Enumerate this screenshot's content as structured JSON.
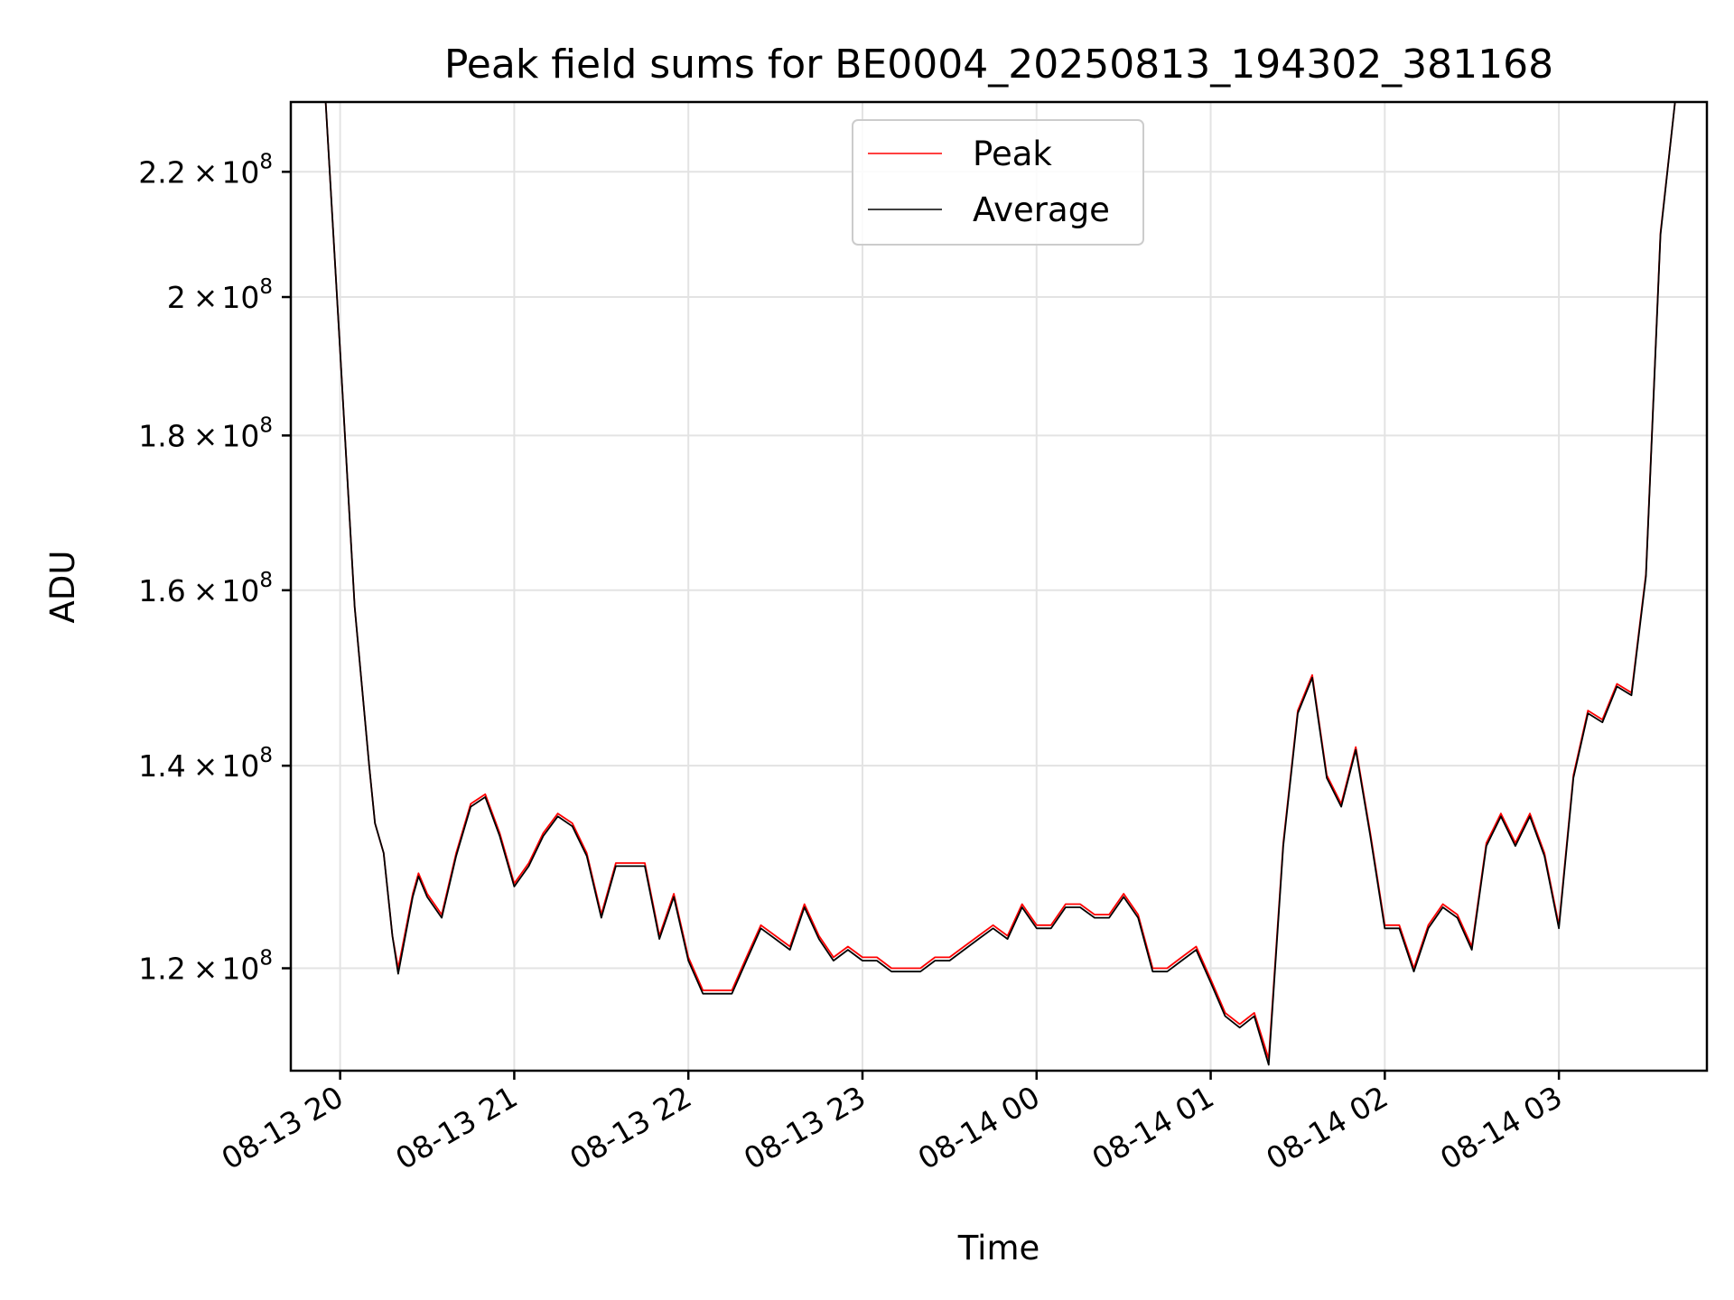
{
  "chart_data": {
    "type": "line",
    "title": "Peak field sums for BE0004_20250813_194302_381168",
    "xlabel": "Time",
    "ylabel": "ADU",
    "y_scale": "log",
    "ylim": [
      111000000,
      232000000
    ],
    "x_range": [
      "2025-08-13 19:43",
      "2025-08-14 03:51"
    ],
    "x_ticks": [
      {
        "x": "2025-08-13 20:00",
        "label": "08-13 20"
      },
      {
        "x": "2025-08-13 21:00",
        "label": "08-13 21"
      },
      {
        "x": "2025-08-13 22:00",
        "label": "08-13 22"
      },
      {
        "x": "2025-08-13 23:00",
        "label": "08-13 23"
      },
      {
        "x": "2025-08-14 00:00",
        "label": "08-14 00"
      },
      {
        "x": "2025-08-14 01:00",
        "label": "08-14 01"
      },
      {
        "x": "2025-08-14 02:00",
        "label": "08-14 02"
      },
      {
        "x": "2025-08-14 03:00",
        "label": "08-14 03"
      }
    ],
    "y_ticks": [
      {
        "value": 120000000,
        "mantissa": "1.2",
        "base": "10",
        "exp": "8"
      },
      {
        "value": 140000000,
        "mantissa": "1.4",
        "base": "10",
        "exp": "8"
      },
      {
        "value": 160000000,
        "mantissa": "1.6",
        "base": "10",
        "exp": "8"
      },
      {
        "value": 180000000,
        "mantissa": "1.8",
        "base": "10",
        "exp": "8"
      },
      {
        "value": 200000000,
        "mantissa": "2",
        "base": "10",
        "exp": "8"
      },
      {
        "value": 220000000,
        "mantissa": "2.2",
        "base": "10",
        "exp": "8"
      }
    ],
    "grid": true,
    "legend_position": "top-center",
    "x": [
      "2025-08-13 19:43",
      "2025-08-13 19:55",
      "2025-08-13 20:00",
      "2025-08-13 20:05",
      "2025-08-13 20:10",
      "2025-08-13 20:12",
      "2025-08-13 20:15",
      "2025-08-13 20:18",
      "2025-08-13 20:20",
      "2025-08-13 20:25",
      "2025-08-13 20:27",
      "2025-08-13 20:30",
      "2025-08-13 20:35",
      "2025-08-13 20:40",
      "2025-08-13 20:45",
      "2025-08-13 20:50",
      "2025-08-13 20:55",
      "2025-08-13 21:00",
      "2025-08-13 21:05",
      "2025-08-13 21:10",
      "2025-08-13 21:15",
      "2025-08-13 21:20",
      "2025-08-13 21:25",
      "2025-08-13 21:30",
      "2025-08-13 21:35",
      "2025-08-13 21:40",
      "2025-08-13 21:45",
      "2025-08-13 21:50",
      "2025-08-13 21:55",
      "2025-08-13 22:00",
      "2025-08-13 22:05",
      "2025-08-13 22:10",
      "2025-08-13 22:15",
      "2025-08-13 22:20",
      "2025-08-13 22:25",
      "2025-08-13 22:30",
      "2025-08-13 22:35",
      "2025-08-13 22:40",
      "2025-08-13 22:45",
      "2025-08-13 22:50",
      "2025-08-13 22:55",
      "2025-08-13 23:00",
      "2025-08-13 23:05",
      "2025-08-13 23:10",
      "2025-08-13 23:15",
      "2025-08-13 23:20",
      "2025-08-13 23:25",
      "2025-08-13 23:30",
      "2025-08-13 23:35",
      "2025-08-13 23:40",
      "2025-08-13 23:45",
      "2025-08-13 23:50",
      "2025-08-13 23:55",
      "2025-08-14 00:00",
      "2025-08-14 00:05",
      "2025-08-14 00:10",
      "2025-08-14 00:15",
      "2025-08-14 00:20",
      "2025-08-14 00:25",
      "2025-08-14 00:30",
      "2025-08-14 00:35",
      "2025-08-14 00:40",
      "2025-08-14 00:45",
      "2025-08-14 00:50",
      "2025-08-14 00:55",
      "2025-08-14 01:00",
      "2025-08-14 01:05",
      "2025-08-14 01:10",
      "2025-08-14 01:15",
      "2025-08-14 01:20",
      "2025-08-14 01:25",
      "2025-08-14 01:30",
      "2025-08-14 01:35",
      "2025-08-14 01:40",
      "2025-08-14 01:45",
      "2025-08-14 01:50",
      "2025-08-14 01:55",
      "2025-08-14 02:00",
      "2025-08-14 02:05",
      "2025-08-14 02:10",
      "2025-08-14 02:15",
      "2025-08-14 02:20",
      "2025-08-14 02:25",
      "2025-08-14 02:30",
      "2025-08-14 02:35",
      "2025-08-14 02:40",
      "2025-08-14 02:45",
      "2025-08-14 02:50",
      "2025-08-14 02:55",
      "2025-08-14 03:00",
      "2025-08-14 03:05",
      "2025-08-14 03:10",
      "2025-08-14 03:15",
      "2025-08-14 03:20",
      "2025-08-14 03:25",
      "2025-08-14 03:30",
      "2025-08-14 03:35",
      "2025-08-14 03:40",
      "2025-08-14 03:51"
    ],
    "series": [
      {
        "name": "Peak",
        "color": "#ff0000",
        "values": [
          232000000,
          232000000,
          192000000,
          158000000,
          140000000,
          134000000,
          131000000,
          123000000,
          120000000,
          127000000,
          129000000,
          127000000,
          125000000,
          131000000,
          136000000,
          137000000,
          133000000,
          128000000,
          130000000,
          133000000,
          135000000,
          134000000,
          131000000,
          125000000,
          130000000,
          130000000,
          130000000,
          123000000,
          127000000,
          121000000,
          118000000,
          118000000,
          118000000,
          121000000,
          124000000,
          123000000,
          122000000,
          126000000,
          123000000,
          121000000,
          122000000,
          121000000,
          121000000,
          120000000,
          120000000,
          120000000,
          121000000,
          121000000,
          122000000,
          123000000,
          124000000,
          123000000,
          126000000,
          124000000,
          124000000,
          126000000,
          126000000,
          125000000,
          125000000,
          127000000,
          125000000,
          120000000,
          120000000,
          121000000,
          122000000,
          119000000,
          116000000,
          115000000,
          116000000,
          112000000,
          132000000,
          146000000,
          150000000,
          139000000,
          136000000,
          142000000,
          133000000,
          124000000,
          124000000,
          120000000,
          124000000,
          126000000,
          125000000,
          122000000,
          132000000,
          135000000,
          132000000,
          135000000,
          131000000,
          124000000,
          139000000,
          146000000,
          145000000,
          149000000,
          148000000,
          162000000,
          210000000,
          232000000,
          232000000
        ]
      },
      {
        "name": "Average",
        "color": "#000000",
        "values": [
          232000000,
          232000000,
          192000000,
          158000000,
          140000000,
          134000000,
          131000000,
          123000000,
          119500000,
          126700000,
          128700000,
          126700000,
          124700000,
          130700000,
          135700000,
          136700000,
          132700000,
          127700000,
          129700000,
          132700000,
          134700000,
          133700000,
          130700000,
          124700000,
          129700000,
          129700000,
          129700000,
          122700000,
          126700000,
          120700000,
          117700000,
          117700000,
          117700000,
          120700000,
          123700000,
          122700000,
          121700000,
          125700000,
          122700000,
          120700000,
          121700000,
          120700000,
          120700000,
          119700000,
          119700000,
          119700000,
          120700000,
          120700000,
          121700000,
          122700000,
          123700000,
          122700000,
          125700000,
          123700000,
          123700000,
          125700000,
          125700000,
          124700000,
          124700000,
          126700000,
          124700000,
          119700000,
          119700000,
          120700000,
          121700000,
          118700000,
          115700000,
          114700000,
          115700000,
          111500000,
          131700000,
          145700000,
          149700000,
          138700000,
          135700000,
          141700000,
          132700000,
          123700000,
          123700000,
          119700000,
          123700000,
          125700000,
          124700000,
          121700000,
          131700000,
          134700000,
          131700000,
          134700000,
          130700000,
          123700000,
          138700000,
          145700000,
          144700000,
          148700000,
          147700000,
          161700000,
          209700000,
          232000000,
          232000000
        ]
      }
    ]
  }
}
